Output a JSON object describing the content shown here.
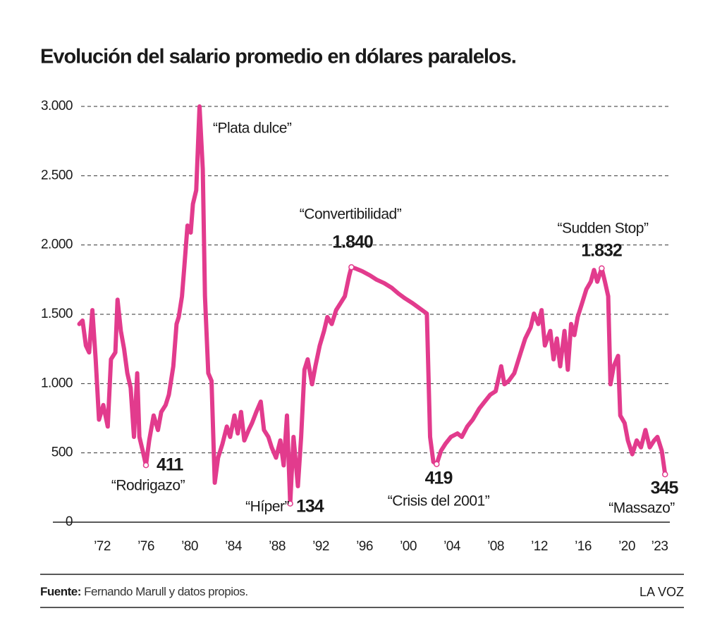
{
  "chart_data": {
    "type": "line",
    "title": "Evolución del salario promedio en dólares paralelos.",
    "color": "#e23b8d",
    "x": [
      1969.9,
      1970.2,
      1970.5,
      1970.8,
      1971.1,
      1971.4,
      1971.7,
      1972.1,
      1972.5,
      1972.8,
      1973.2,
      1973.4,
      1973.7,
      1974.0,
      1974.3,
      1974.6,
      1974.9,
      1975.2,
      1975.4,
      1975.7,
      1976.0,
      1976.3,
      1976.7,
      1977.1,
      1977.4,
      1977.8,
      1978.1,
      1978.5,
      1978.8,
      1979.0,
      1979.3,
      1979.5,
      1979.8,
      1980.1,
      1980.3,
      1980.6,
      1980.9,
      1981.2,
      1981.4,
      1981.7,
      1982.0,
      1982.3,
      1982.6,
      1983.0,
      1983.4,
      1983.7,
      1984.1,
      1984.4,
      1984.7,
      1985.0,
      1985.4,
      1985.7,
      1986.1,
      1986.5,
      1986.8,
      1987.2,
      1987.5,
      1987.9,
      1988.3,
      1988.6,
      1988.9,
      1989.2,
      1989.5,
      1989.9,
      1990.2,
      1990.5,
      1990.8,
      1991.2,
      1991.5,
      1991.9,
      1992.3,
      1992.6,
      1993.0,
      1993.4,
      1993.8,
      1994.2,
      1994.6,
      1994.8,
      1995.2,
      1995.8,
      1996.5,
      1997.1,
      1997.8,
      1998.5,
      1999.1,
      1999.7,
      2000.4,
      2001.0,
      2001.7,
      2002.0,
      2002.3,
      2002.6,
      2003.0,
      2003.4,
      2003.9,
      2004.5,
      2004.9,
      2005.4,
      2005.9,
      2006.5,
      2007.0,
      2007.5,
      2008.0,
      2008.5,
      2008.8,
      2009.2,
      2009.7,
      2010.3,
      2010.7,
      2011.2,
      2011.5,
      2011.9,
      2012.2,
      2012.5,
      2013.0,
      2013.3,
      2013.6,
      2013.9,
      2014.3,
      2014.6,
      2014.9,
      2015.2,
      2015.5,
      2015.9,
      2016.3,
      2016.7,
      2017.0,
      2017.3,
      2017.7,
      2018.0,
      2018.3,
      2018.5,
      2018.8,
      2019.2,
      2019.4,
      2019.8,
      2020.1,
      2020.5,
      2020.9,
      2021.3,
      2021.7,
      2022.1,
      2022.5,
      2022.8,
      2023.2,
      2023.5
    ],
    "values": [
      1430,
      1455,
      1275,
      1225,
      1530,
      1175,
      740,
      845,
      690,
      1175,
      1225,
      1605,
      1380,
      1250,
      1075,
      970,
      615,
      1075,
      615,
      515,
      411,
      590,
      770,
      665,
      795,
      845,
      920,
      1125,
      1430,
      1480,
      1630,
      1835,
      2140,
      2090,
      2295,
      2395,
      3000,
      2545,
      1630,
      1075,
      1020,
      285,
      465,
      565,
      690,
      615,
      770,
      640,
      795,
      590,
      665,
      715,
      795,
      870,
      665,
      615,
      540,
      465,
      590,
      410,
      770,
      134,
      615,
      260,
      615,
      1100,
      1175,
      995,
      1125,
      1275,
      1380,
      1480,
      1430,
      1530,
      1580,
      1630,
      1780,
      1840,
      1830,
      1810,
      1780,
      1750,
      1725,
      1690,
      1650,
      1615,
      1580,
      1545,
      1505,
      615,
      435,
      419,
      515,
      565,
      615,
      640,
      615,
      690,
      740,
      820,
      870,
      920,
      945,
      1125,
      995,
      1020,
      1075,
      1225,
      1325,
      1405,
      1505,
      1430,
      1530,
      1275,
      1380,
      1175,
      1325,
      1125,
      1380,
      1100,
      1430,
      1350,
      1480,
      1580,
      1680,
      1735,
      1820,
      1735,
      1832,
      1735,
      1630,
      995,
      1125,
      1200,
      770,
      715,
      590,
      490,
      590,
      540,
      665,
      540,
      590,
      615,
      515,
      345
    ],
    "highlights": [
      {
        "x": 1980.9,
        "value": 3000,
        "name": "“Plata dulce”"
      },
      {
        "x": 1976.0,
        "value": 411,
        "label": "411",
        "name": "“Rodrigazo”"
      },
      {
        "x": 1989.2,
        "value": 134,
        "label": "134",
        "name": "“Híper”"
      },
      {
        "x": 1994.8,
        "value": 1840,
        "label": "1.840",
        "name": "“Convertibilidad”"
      },
      {
        "x": 2002.6,
        "value": 419,
        "label": "419",
        "name": "“Crisis del 2001”"
      },
      {
        "x": 2017.7,
        "value": 1832,
        "label": "1.832",
        "name": "“Sudden Stop”"
      },
      {
        "x": 2023.5,
        "value": 345,
        "label": "345",
        "name": "“Massazo”"
      }
    ],
    "xlim": [
      1970,
      2023
    ],
    "xticks": [
      {
        "value": 1972,
        "label": "’72"
      },
      {
        "value": 1976,
        "label": "’76"
      },
      {
        "value": 1980,
        "label": "’80"
      },
      {
        "value": 1984,
        "label": "’84"
      },
      {
        "value": 1988,
        "label": "’88"
      },
      {
        "value": 1992,
        "label": "’92"
      },
      {
        "value": 1996,
        "label": "’96"
      },
      {
        "value": 2000,
        "label": "’00"
      },
      {
        "value": 2004,
        "label": "’04"
      },
      {
        "value": 2008,
        "label": "’08"
      },
      {
        "value": 2012,
        "label": "’12"
      },
      {
        "value": 2016,
        "label": "’16"
      },
      {
        "value": 2020,
        "label": "’20"
      },
      {
        "value": 2023,
        "label": "’23"
      }
    ],
    "ylim": [
      0,
      3000
    ],
    "yticks": [
      0,
      500,
      {
        "value": 1000,
        "label": "1.000"
      },
      {
        "value": 1500,
        "label": "1.500"
      },
      {
        "value": 2000,
        "label": "2.000"
      },
      {
        "value": 2500,
        "label": "2.500"
      },
      {
        "value": 3000,
        "label": "3.000"
      }
    ],
    "grid": true
  },
  "footer": {
    "source_label": "Fuente:",
    "source": "Fernando Marull y datos propios.",
    "brand": "LA VOZ"
  }
}
